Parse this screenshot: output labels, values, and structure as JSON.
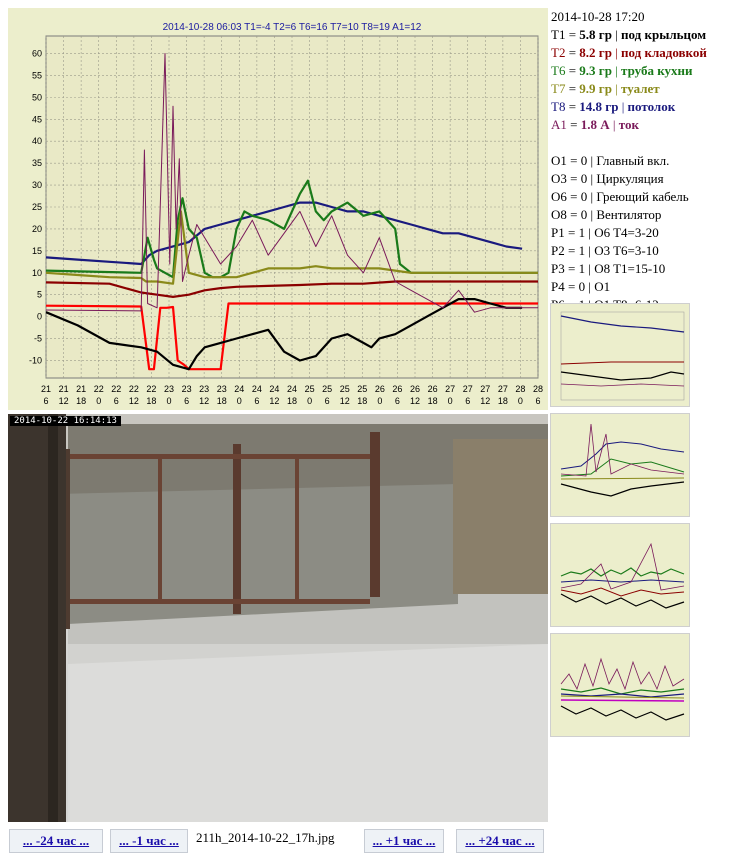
{
  "chart": {
    "title": "2014-10-28 06:03  T1=-4  T2=6  T6=16  T7=10  T8=19  A1=12",
    "chart_data": {
      "type": "line",
      "title": "2014-10-28 06:03  T1=-4  T2=6  T6=16  T7=10  T8=19  A1=12",
      "xlabel": "",
      "ylabel": "",
      "ylim": [
        -14,
        64
      ],
      "xlim": [
        0,
        31
      ],
      "y_ticks": [
        -10,
        -5,
        0,
        5,
        10,
        15,
        20,
        25,
        30,
        35,
        40,
        45,
        50,
        55,
        60
      ],
      "x_tick_labels_top": [
        "21",
        "21",
        "21",
        "22",
        "22",
        "22",
        "22",
        "23",
        "23",
        "23",
        "23",
        "24",
        "24",
        "24",
        "24",
        "25",
        "25",
        "25",
        "25",
        "26",
        "26",
        "26",
        "26",
        "27",
        "27",
        "27",
        "27",
        "28",
        "28"
      ],
      "x_tick_labels_bottom": [
        "6",
        "12",
        "18",
        "0",
        "6",
        "12",
        "18",
        "0",
        "6",
        "12",
        "18",
        "0",
        "6",
        "12",
        "18",
        "0",
        "6",
        "12",
        "18",
        "0",
        "6",
        "12",
        "18",
        "0",
        "6",
        "12",
        "18",
        "0",
        "6"
      ],
      "grid": true,
      "series": [
        {
          "color": "#ff0000",
          "values": [
            [
              0,
              2.5
            ],
            [
              6,
              2.3
            ],
            [
              6.5,
              -12
            ],
            [
              6.8,
              -12
            ],
            [
              7.2,
              2
            ],
            [
              7.6,
              2
            ],
            [
              8,
              2.2
            ],
            [
              8.3,
              -10
            ],
            [
              8.7,
              -11
            ],
            [
              9,
              -12
            ],
            [
              11,
              -12
            ],
            [
              11.5,
              3
            ],
            [
              31,
              3
            ]
          ]
        },
        {
          "color": "#1a1a7e",
          "values": [
            [
              0,
              13.5
            ],
            [
              2,
              13
            ],
            [
              4,
              12.5
            ],
            [
              6,
              12
            ],
            [
              6.5,
              14
            ],
            [
              7,
              15
            ],
            [
              9,
              17
            ],
            [
              10,
              20
            ],
            [
              11,
              21
            ],
            [
              12,
              22
            ],
            [
              13,
              23
            ],
            [
              14,
              24
            ],
            [
              15,
              25
            ],
            [
              16,
              26
            ],
            [
              17,
              26
            ],
            [
              18,
              25
            ],
            [
              19,
              24
            ],
            [
              20,
              24
            ],
            [
              21,
              23
            ],
            [
              22,
              22
            ],
            [
              23,
              21
            ],
            [
              24,
              20
            ],
            [
              25,
              19
            ],
            [
              26,
              19
            ],
            [
              27,
              18
            ],
            [
              28,
              17
            ],
            [
              29,
              16
            ],
            [
              30,
              15.5
            ]
          ]
        },
        {
          "color": "#1a7a1a",
          "values": [
            [
              0,
              10.5
            ],
            [
              6,
              10
            ],
            [
              6.4,
              18
            ],
            [
              6.8,
              13
            ],
            [
              7,
              11
            ],
            [
              7.5,
              10
            ],
            [
              8,
              9
            ],
            [
              8.3,
              22
            ],
            [
              8.6,
              27
            ],
            [
              9,
              20
            ],
            [
              9.5,
              18
            ],
            [
              10,
              10
            ],
            [
              10.5,
              9
            ],
            [
              11,
              9
            ],
            [
              11.5,
              10
            ],
            [
              12,
              20
            ],
            [
              12.5,
              24
            ],
            [
              13,
              23
            ],
            [
              14,
              22
            ],
            [
              15,
              20
            ],
            [
              16,
              28
            ],
            [
              16.5,
              31
            ],
            [
              17,
              24
            ],
            [
              17.5,
              22
            ],
            [
              18,
              24
            ],
            [
              19,
              26
            ],
            [
              20,
              23
            ],
            [
              21,
              24
            ],
            [
              22,
              20
            ],
            [
              22.3,
              12
            ],
            [
              23,
              10
            ],
            [
              24,
              10
            ],
            [
              31,
              10
            ]
          ]
        },
        {
          "color": "#8a8a1a",
          "values": [
            [
              0,
              10
            ],
            [
              2,
              9.5
            ],
            [
              4,
              9
            ],
            [
              6,
              8.8
            ],
            [
              6.3,
              8
            ],
            [
              7,
              8
            ],
            [
              8,
              7.5
            ],
            [
              8.5,
              24
            ],
            [
              9,
              10
            ],
            [
              10,
              9
            ],
            [
              11,
              9
            ],
            [
              12,
              9
            ],
            [
              13,
              10
            ],
            [
              14,
              11
            ],
            [
              15,
              11
            ],
            [
              16,
              11
            ],
            [
              17,
              11.5
            ],
            [
              18,
              11
            ],
            [
              19,
              11
            ],
            [
              20,
              11
            ],
            [
              21,
              11
            ],
            [
              22,
              10.5
            ],
            [
              23,
              10
            ],
            [
              24,
              10
            ],
            [
              31,
              10
            ]
          ]
        },
        {
          "color": "#8b0000",
          "values": [
            [
              0,
              7.8
            ],
            [
              4,
              7.5
            ],
            [
              6,
              5.5
            ],
            [
              7,
              5
            ],
            [
              8,
              4.5
            ],
            [
              9,
              5
            ],
            [
              10,
              6
            ],
            [
              11,
              6.5
            ],
            [
              12,
              6.8
            ],
            [
              14,
              7
            ],
            [
              16,
              7.2
            ],
            [
              18,
              7.5
            ],
            [
              20,
              7.5
            ],
            [
              22,
              8
            ],
            [
              24,
              8
            ],
            [
              26,
              8
            ],
            [
              28,
              8
            ],
            [
              31,
              8
            ]
          ]
        },
        {
          "color": "#000000",
          "values": [
            [
              0,
              1
            ],
            [
              2,
              -2
            ],
            [
              4,
              -6
            ],
            [
              6,
              -7
            ],
            [
              7,
              -8
            ],
            [
              8,
              -11
            ],
            [
              9,
              -12
            ],
            [
              9.5,
              -9
            ],
            [
              10,
              -7
            ],
            [
              11,
              -6
            ],
            [
              12,
              -5
            ],
            [
              13,
              -4
            ],
            [
              14,
              -3
            ],
            [
              15,
              -8
            ],
            [
              16,
              -10
            ],
            [
              17,
              -9
            ],
            [
              18,
              -5
            ],
            [
              19,
              -4
            ],
            [
              20,
              -6
            ],
            [
              20.5,
              -7
            ],
            [
              21,
              -5
            ],
            [
              22,
              -4
            ],
            [
              23,
              -2
            ],
            [
              24,
              0
            ],
            [
              25,
              2
            ],
            [
              26,
              4
            ],
            [
              27,
              4
            ],
            [
              28,
              3
            ],
            [
              29,
              2
            ],
            [
              30,
              2
            ]
          ]
        },
        {
          "color": "#7a1a5a",
          "values": [
            [
              0,
              1.5
            ],
            [
              6,
              1.3
            ],
            [
              6.2,
              38
            ],
            [
              6.4,
              3
            ],
            [
              7,
              2
            ],
            [
              7.5,
              60
            ],
            [
              7.8,
              12
            ],
            [
              8,
              48
            ],
            [
              8.2,
              20
            ],
            [
              8.4,
              36
            ],
            [
              8.6,
              8
            ],
            [
              9,
              14
            ],
            [
              9.5,
              21
            ],
            [
              10,
              18
            ],
            [
              11,
              12
            ],
            [
              12,
              16
            ],
            [
              13,
              22
            ],
            [
              14,
              14
            ],
            [
              15,
              19
            ],
            [
              16,
              24
            ],
            [
              17,
              16
            ],
            [
              18,
              23
            ],
            [
              19,
              14
            ],
            [
              20,
              10
            ],
            [
              21,
              18
            ],
            [
              22,
              8
            ],
            [
              23,
              6
            ],
            [
              24,
              4
            ],
            [
              25,
              2
            ],
            [
              26,
              6
            ],
            [
              27,
              1
            ],
            [
              28,
              2
            ],
            [
              31,
              2
            ]
          ]
        }
      ]
    }
  },
  "camera": {
    "timestamp": "2014-10-22 16:14:13"
  },
  "status": {
    "datetime": "2014-10-28 17:20",
    "sensors": [
      {
        "name": "T1",
        "value": "5.8 гр",
        "location": "под крыльцом",
        "color": "#000000"
      },
      {
        "name": "T2",
        "value": "8.2 гр",
        "location": "под кладовкой",
        "color": "#8b0000"
      },
      {
        "name": "T6",
        "value": "9.3 гр",
        "location": "труба кухни",
        "color": "#1a7a1a"
      },
      {
        "name": "T7",
        "value": "9.9 гр",
        "location": "туалет",
        "color": "#8a8a1a"
      },
      {
        "name": "T8",
        "value": "14.8 гр",
        "location": "потолок",
        "color": "#1a1a7e"
      },
      {
        "name": "A1",
        "value": "1.8 А",
        "location": "ток",
        "color": "#7a1a5a"
      }
    ],
    "outputs": [
      {
        "name": "O1",
        "value": "0",
        "desc": "Главный вкл."
      },
      {
        "name": "O3",
        "value": "0",
        "desc": "Циркуляция"
      },
      {
        "name": "O6",
        "value": "0",
        "desc": "Греющий кабель"
      },
      {
        "name": "O8",
        "value": "0",
        "desc": "Вентилятор"
      },
      {
        "name": "P1",
        "value": "1",
        "desc": "O6 T4=3-20"
      },
      {
        "name": "P2",
        "value": "1",
        "desc": "O3 T6=3-10"
      },
      {
        "name": "P3",
        "value": "1",
        "desc": "O8 T1=15-10"
      },
      {
        "name": "P4",
        "value": "0",
        "desc": "O1"
      },
      {
        "name": "P6",
        "value": "1",
        "desc": "O1 T8=6-12"
      }
    ]
  },
  "footer": {
    "prev24_label": "... -24 час ...",
    "prev1_label": "... -1 час ...",
    "filename": "211h_2014-10-22_17h.jpg",
    "next1_label": "... +1 час ...",
    "next24_label": "... +24 час ..."
  }
}
